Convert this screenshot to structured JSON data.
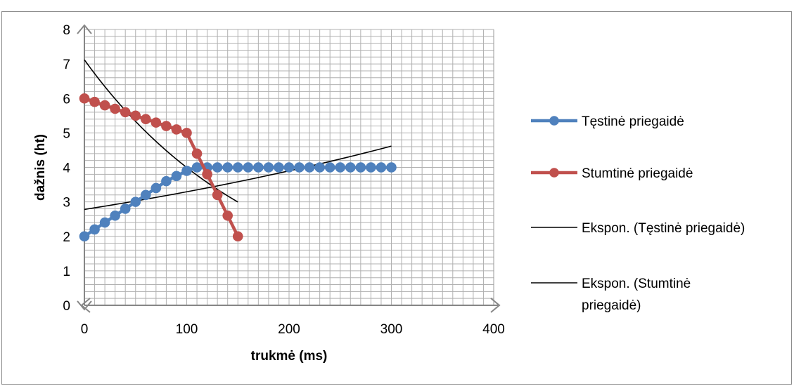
{
  "caption": "",
  "chart_data": {
    "type": "line",
    "xlabel": "trukmė (ms)",
    "ylabel": "dažnis (ht)",
    "xlim": [
      0,
      400
    ],
    "ylim": [
      0,
      8
    ],
    "x_ticks": [
      0,
      100,
      200,
      300,
      400
    ],
    "y_ticks": [
      0,
      1,
      2,
      3,
      4,
      5,
      6,
      7,
      8
    ],
    "grid": true,
    "legend_position": "right",
    "series": [
      {
        "name": "Tęstinė priegaidė",
        "color": "#4f81bd",
        "marker": "circle",
        "x": [
          0,
          10,
          20,
          30,
          40,
          50,
          60,
          70,
          80,
          90,
          100,
          110,
          120,
          130,
          140,
          150,
          160,
          170,
          180,
          190,
          200,
          210,
          220,
          230,
          240,
          250,
          260,
          270,
          280,
          290,
          300
        ],
        "y": [
          2.0,
          2.2,
          2.4,
          2.6,
          2.8,
          3.0,
          3.2,
          3.4,
          3.6,
          3.75,
          3.9,
          4.0,
          4.0,
          4.0,
          4.0,
          4.0,
          4.0,
          4.0,
          4.0,
          4.0,
          4.0,
          4.0,
          4.0,
          4.0,
          4.0,
          4.0,
          4.0,
          4.0,
          4.0,
          4.0,
          4.0
        ]
      },
      {
        "name": "Stumtinė priegaidė",
        "color": "#c0504d",
        "marker": "circle",
        "x": [
          0,
          10,
          20,
          30,
          40,
          50,
          60,
          70,
          80,
          90,
          100,
          110,
          120,
          130,
          140,
          150
        ],
        "y": [
          6.0,
          5.9,
          5.8,
          5.7,
          5.6,
          5.5,
          5.4,
          5.3,
          5.2,
          5.1,
          5.0,
          4.4,
          3.8,
          3.2,
          2.6,
          2.0
        ]
      },
      {
        "name": "Ekspon. (Tęstinė priegaidė)",
        "color": "#000000",
        "type": "trendline",
        "x_range": [
          0,
          300
        ],
        "a": 2.78,
        "b": 0.001691
      },
      {
        "name": "Ekspon. (Stumtinė priegaidė)",
        "color": "#000000",
        "type": "trendline",
        "x_range": [
          0,
          150
        ],
        "a": 7.12,
        "b": -0.005773
      }
    ],
    "legend": [
      {
        "label": "Tęstinė priegaidė",
        "style": "marker"
      },
      {
        "label": "Stumtinė priegaidė",
        "style": "marker"
      },
      {
        "label": "Ekspon. (Tęstinė priegaidė)",
        "style": "line"
      },
      {
        "label": "Ekspon. (Stumtinė",
        "label2": "priegaidė)",
        "style": "line"
      }
    ]
  }
}
